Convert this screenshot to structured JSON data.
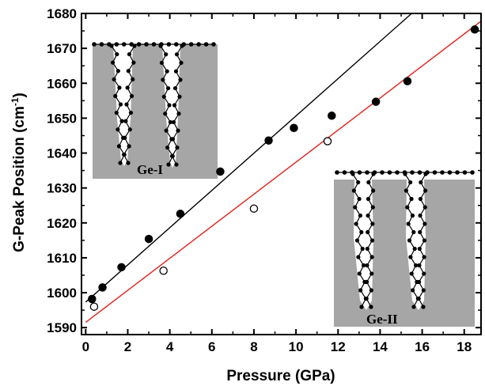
{
  "chart_data": {
    "type": "scatter",
    "xlabel": "Pressure (GPa)",
    "ylabel_main": "G-Peak Position (cm",
    "ylabel_sup": "-1",
    "ylabel_close": ")",
    "xlim": [
      -0.2,
      18.8
    ],
    "ylim": [
      1588,
      1680
    ],
    "xticks": [
      0,
      2,
      4,
      6,
      8,
      10,
      12,
      14,
      16,
      18
    ],
    "yticks": [
      1590,
      1600,
      1610,
      1620,
      1630,
      1640,
      1650,
      1660,
      1670,
      1680
    ],
    "series": [
      {
        "marker": "filled-circle",
        "color": "#000000",
        "x": [
          0.3,
          0.8,
          1.7,
          3.0,
          4.5,
          6.4,
          8.7,
          9.9,
          11.7,
          13.8,
          15.3,
          18.5
        ],
        "y": [
          1598.2,
          1601.5,
          1607.3,
          1615.4,
          1622.6,
          1634.7,
          1643.6,
          1647.2,
          1650.7,
          1654.7,
          1660.6,
          1675.4
        ]
      },
      {
        "marker": "open-circle",
        "color": "#000000",
        "x": [
          0.4,
          3.7,
          8.0,
          11.5
        ],
        "y": [
          1596.0,
          1606.3,
          1624.1,
          1643.4
        ]
      }
    ],
    "fit_lines": [
      {
        "color": "#000000",
        "x": [
          0.0,
          15.5
        ],
        "y": [
          1597.3,
          1680.0
        ]
      },
      {
        "color": "#e0201b",
        "x": [
          0.0,
          18.8
        ],
        "y": [
          1591.5,
          1677.8
        ]
      }
    ],
    "insets": [
      {
        "label": "Ge-I"
      },
      {
        "label": "Ge-II"
      }
    ]
  }
}
